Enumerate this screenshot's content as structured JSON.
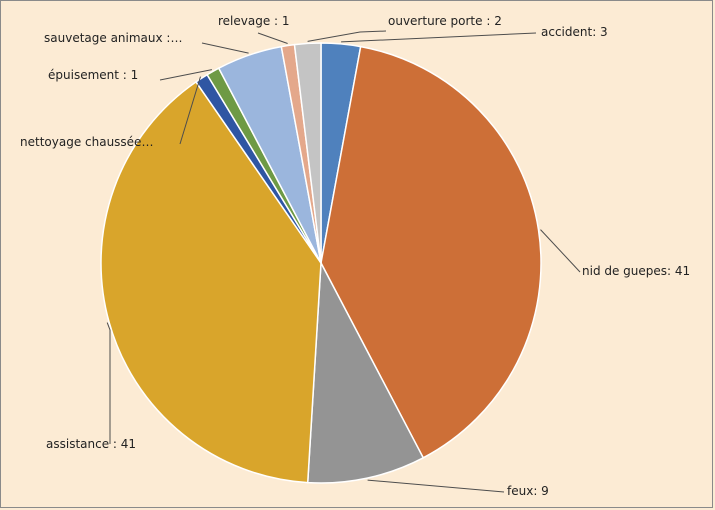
{
  "chart_data": {
    "type": "pie",
    "slices": [
      {
        "label": "accident:",
        "value": 3,
        "display": "accident: 3",
        "color": "#4f81bd"
      },
      {
        "label": "nid de guepes:",
        "value": 41,
        "display": "nid de guepes: 41",
        "color": "#cd6f37"
      },
      {
        "label": "feux:",
        "value": 9,
        "display": "feux: 9",
        "color": "#949494"
      },
      {
        "label": "assistance :",
        "value": 41,
        "display": "assistance : 41",
        "color": "#d9a52b"
      },
      {
        "label": "nettoyage chaussée",
        "value": 1,
        "display": "nettoyage chaussée…",
        "color": "#2f56a3"
      },
      {
        "label": "épuisement :",
        "value": 1,
        "display": "épuisement : 1",
        "color": "#6e9a45"
      },
      {
        "label": "sauvetage animaux :",
        "value": 5,
        "display": "sauvetage animaux :…",
        "color": "#9bb6dd"
      },
      {
        "label": "relevage :",
        "value": 1,
        "display": "relevage : 1",
        "color": "#e4a88b"
      },
      {
        "label": "ouverture porte :",
        "value": 2,
        "display": "ouverture porte : 2",
        "color": "#c4c4c4"
      }
    ]
  }
}
